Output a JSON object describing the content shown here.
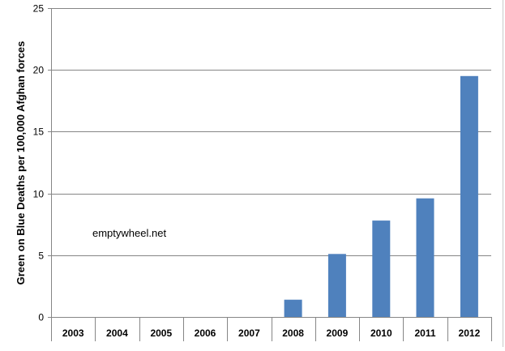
{
  "chart_data": {
    "type": "bar",
    "title": "",
    "xlabel": "",
    "ylabel": "Green on Blue Deaths per 100,000 Afghan forces",
    "categories": [
      "2003",
      "2004",
      "2005",
      "2006",
      "2007",
      "2008",
      "2009",
      "2010",
      "2011",
      "2012"
    ],
    "values": [
      0,
      0,
      0,
      0,
      0,
      1.4,
      5.1,
      7.8,
      9.6,
      19.5
    ],
    "ylim": [
      0,
      25
    ],
    "yticks": [
      0,
      5,
      10,
      15,
      20,
      25
    ],
    "ytick_labels": [
      "0",
      "5",
      "10",
      "15",
      "20",
      "25"
    ],
    "grid": true,
    "legend": "none",
    "annotation": "emptywheel.net",
    "colors": {
      "bar": "#4f81bd",
      "grid": "#868686",
      "axis": "#868686",
      "text": "#000000"
    }
  }
}
